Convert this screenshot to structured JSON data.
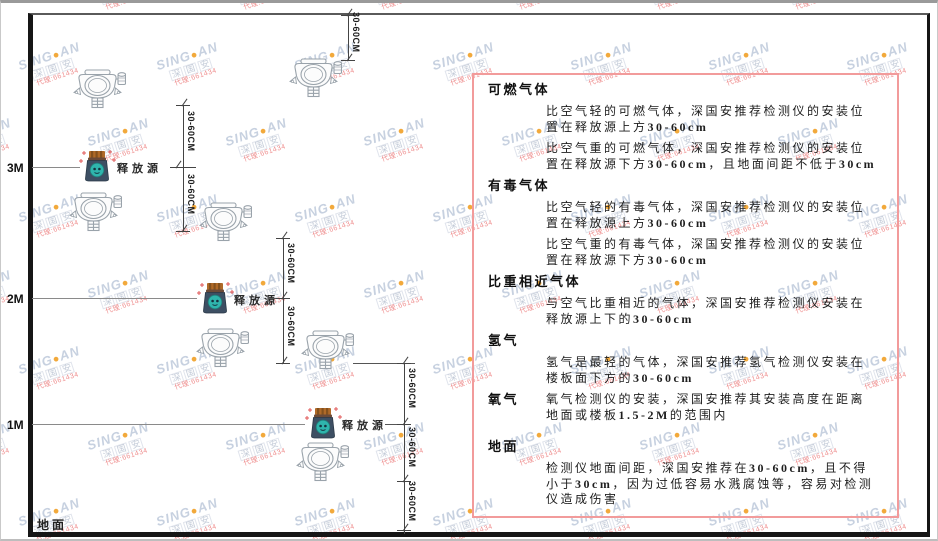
{
  "diagram": {
    "axis_labels": [
      "3M",
      "2M",
      "1M"
    ],
    "ground_label": "地面",
    "source_label": "释放源",
    "dim_label": "30-60CM"
  },
  "panel": {
    "sections": [
      {
        "heading": "可燃气体",
        "paragraphs": [
          "比空气轻的可燃气体，深国安推荐检测仪的安装位置在释放源上方30-60cm",
          "比空气重的可燃气体，深国安推荐检测仪的安装位置在释放源下方30-60cm，且地面间距不低于30cm"
        ]
      },
      {
        "heading": "有毒气体",
        "paragraphs": [
          "比空气轻的有毒气体，深国安推荐检测仪的安装位置在释放源上方30-60cm",
          "比空气重的有毒气体，深国安推荐检测仪的安装位置在释放源下方30-60cm"
        ]
      },
      {
        "heading": "比重相近气体",
        "paragraphs": [
          "与空气比重相近的气体，深国安推荐检测仪安装在释放源上下的30-60cm"
        ]
      },
      {
        "heading": "氢气",
        "paragraphs": [
          "氢气是最轻的气体，深国安推荐氢气检测仪安装在楼板面下方的30-60cm"
        ]
      },
      {
        "heading": "氧气",
        "paragraphs": [
          "氧气检测仪的安装，深国安推荐其安装高度在距离地面或楼板1.5-2M的范围内"
        ]
      },
      {
        "heading": "地面",
        "paragraphs": [
          "检测仪地面间距，深国安推荐在30-60cm，且不得小于30cm，因为过低容易水溅腐蚀等，容易对检测仪造成伤害"
        ]
      }
    ]
  },
  "watermark": {
    "brand_left": "SING",
    "dot": "●",
    "brand_right": "AN",
    "cn": "深国安",
    "red_text": "代理:661434"
  },
  "colors": {
    "panel_border": "#f29b9b",
    "watermark_blue": "#c7d1e0",
    "watermark_dot": "#f2a93b",
    "source_body": "#3d4f63",
    "source_cap": "#b06a28",
    "source_face": "#2fb5ad"
  }
}
